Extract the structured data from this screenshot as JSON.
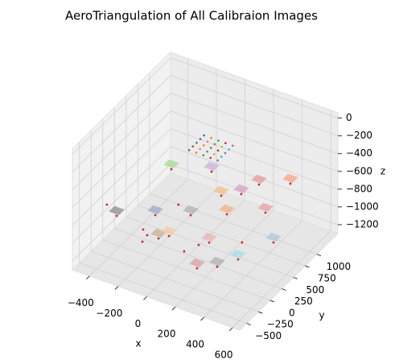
{
  "chart_data": {
    "type": "scatter3d",
    "title": "AeroTriangulation of All Calibraion Images",
    "x_label": "x",
    "y_label": "y",
    "z_label": "z",
    "xlim": [
      -520,
      650
    ],
    "ylim": [
      -650,
      1450
    ],
    "zlim": [
      -1300,
      60
    ],
    "xticks": [
      {
        "value": -400,
        "label": "−400"
      },
      {
        "value": -200,
        "label": "−200"
      },
      0,
      200,
      400,
      600
    ],
    "yticks": [
      {
        "value": -500,
        "label": "−500"
      },
      {
        "value": -250,
        "label": "−250"
      },
      0,
      250,
      500,
      750,
      1000
    ],
    "zticks": [
      0,
      {
        "value": -200,
        "label": "−200"
      },
      {
        "value": -400,
        "label": "−400"
      },
      {
        "value": -600,
        "label": "−600"
      },
      {
        "value": -800,
        "label": "−800"
      },
      {
        "value": -1000,
        "label": "−1000"
      },
      {
        "value": -1200,
        "label": "−1200"
      }
    ],
    "grid": true,
    "series": [
      {
        "color": "#d62728",
        "x": [
          -373,
          -453,
          -259,
          -78,
          -195,
          -246,
          -196,
          -121,
          -187,
          -80,
          77,
          231,
          326,
          118,
          159,
          395,
          327,
          488,
          103,
          301,
          457,
          260,
          292,
          -227,
          166,
          54
        ],
        "y": [
          -362,
          91,
          325,
          528,
          625,
          26,
          -41,
          -28,
          -171,
          70,
          -85,
          -280,
          -140,
          100,
          198,
          96,
          388,
          568,
          749,
          831,
          1024,
          576,
          996,
          570,
          436,
          572
        ],
        "z": [
          -630,
          -1038,
          -1038,
          -1038,
          -1038,
          -1038,
          -1038,
          -1038,
          -1038,
          -1038,
          -1038,
          -1038,
          -1038,
          -1038,
          -1038,
          -1038,
          -1038,
          -1038,
          -1038,
          -630,
          -630,
          -630,
          -1038,
          -630,
          -630,
          -494
        ],
        "footprint_colors": [
          null,
          "#8c8c8c",
          "#9fa8c8",
          "#b0b0b0",
          null,
          null,
          null,
          "#c8b090",
          null,
          "#f2c9a0",
          null,
          "#d9a0a0",
          "#b0b0b0",
          null,
          "#e8b4b8",
          "#a8dce8",
          null,
          "#b0c8d8",
          "#f4b082",
          "#e89a9a",
          "#f4a582",
          "#d8a0c8",
          "#e8a0a0",
          "#a8d890",
          "#f2c08a",
          "#c8b0d8"
        ]
      },
      {
        "marker": "small",
        "x": [
          -60,
          -10,
          40,
          90,
          140,
          -60,
          -10,
          40,
          90,
          140,
          -60,
          -10,
          40,
          90,
          140,
          -60,
          -10,
          40,
          90,
          140,
          -60,
          -10,
          40,
          90,
          140
        ],
        "y": [
          440,
          440,
          440,
          440,
          440,
          520,
          520,
          520,
          520,
          520,
          600,
          600,
          600,
          600,
          600,
          680,
          680,
          680,
          680,
          680,
          760,
          760,
          760,
          760,
          760
        ],
        "z": [
          -250,
          -250,
          -250,
          -250,
          -250,
          -250,
          -250,
          -250,
          -250,
          -250,
          -250,
          -250,
          -250,
          -250,
          -250,
          -250,
          -250,
          -250,
          -250,
          -250,
          -250,
          -250,
          -250,
          -250,
          -250
        ],
        "colors": [
          "#1f77b4",
          "#ff7f0e",
          "#2ca02c",
          "#d62728",
          "#9467bd",
          "#8c564b",
          "#e377c2",
          "#7f7f7f",
          "#bcbd22",
          "#17becf",
          "#1f77b4",
          "#ff7f0e",
          "#2ca02c",
          "#d62728",
          "#9467bd",
          "#8c564b",
          "#e377c2",
          "#7f7f7f",
          "#bcbd22",
          "#17becf",
          "#1f77b4",
          "#ff7f0e",
          "#2ca02c",
          "#d62728",
          "#9467bd"
        ]
      }
    ]
  }
}
